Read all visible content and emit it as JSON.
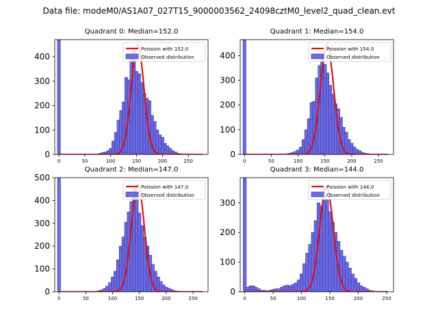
{
  "figure": {
    "title": "Data file: modeM0/AS1A07_027T15_9000003562_24098cztM0_level2_quad_clean.evt",
    "background": "#ffffff",
    "bar_color": "#6b6be6",
    "bar_edge_color": "#2b2b8a",
    "curve_color": "#e01010"
  },
  "chart_data": [
    {
      "type": "bar",
      "title": "Quadrant 0: Median=152.0",
      "median": 152.0,
      "xlim": [
        -8,
        288
      ],
      "ylim": [
        0,
        470
      ],
      "xticks": [
        0,
        50,
        100,
        150,
        200,
        250
      ],
      "yticks": [
        0,
        100,
        200,
        300,
        400
      ],
      "legend": {
        "location": "top-right",
        "poisson_label": "Poission with 152.0",
        "observed_label": "Observed distribution"
      },
      "bin_width": 5.5,
      "bins": [
        [
          0,
          470
        ],
        [
          5,
          0
        ],
        [
          10,
          0
        ],
        [
          15,
          0
        ],
        [
          20,
          0
        ],
        [
          25,
          0
        ],
        [
          30,
          0
        ],
        [
          35,
          0
        ],
        [
          40,
          0
        ],
        [
          45,
          0
        ],
        [
          50,
          0
        ],
        [
          55,
          0
        ],
        [
          60,
          0
        ],
        [
          65,
          0
        ],
        [
          70,
          0
        ],
        [
          75,
          0
        ],
        [
          80,
          5
        ],
        [
          85,
          8
        ],
        [
          90,
          10
        ],
        [
          95,
          15
        ],
        [
          100,
          25
        ],
        [
          105,
          55
        ],
        [
          110,
          90
        ],
        [
          115,
          140
        ],
        [
          120,
          180
        ],
        [
          125,
          215
        ],
        [
          130,
          315
        ],
        [
          135,
          305
        ],
        [
          140,
          400
        ],
        [
          145,
          435
        ],
        [
          150,
          340
        ],
        [
          155,
          330
        ],
        [
          160,
          295
        ],
        [
          165,
          250
        ],
        [
          170,
          230
        ],
        [
          175,
          220
        ],
        [
          180,
          160
        ],
        [
          185,
          135
        ],
        [
          190,
          100
        ],
        [
          195,
          80
        ],
        [
          200,
          70
        ],
        [
          205,
          45
        ],
        [
          210,
          35
        ],
        [
          215,
          25
        ],
        [
          220,
          15
        ],
        [
          225,
          10
        ],
        [
          230,
          5
        ],
        [
          235,
          3
        ],
        [
          240,
          2
        ],
        [
          245,
          1
        ]
      ],
      "poisson_peak": 450
    },
    {
      "type": "bar",
      "title": "Quadrant 1: Median=154.0",
      "median": 154.0,
      "xlim": [
        -8,
        278
      ],
      "ylim": [
        0,
        465
      ],
      "xticks": [
        0,
        50,
        100,
        150,
        200,
        250
      ],
      "yticks": [
        0,
        100,
        200,
        300,
        400
      ],
      "legend": {
        "location": "top-right",
        "poisson_label": "Poission with 154.0",
        "observed_label": "Observed distribution"
      },
      "bin_width": 5.5,
      "bins": [
        [
          0,
          465
        ],
        [
          5,
          0
        ],
        [
          10,
          0
        ],
        [
          15,
          0
        ],
        [
          20,
          0
        ],
        [
          25,
          0
        ],
        [
          30,
          0
        ],
        [
          35,
          0
        ],
        [
          40,
          0
        ],
        [
          45,
          0
        ],
        [
          50,
          0
        ],
        [
          55,
          0
        ],
        [
          60,
          0
        ],
        [
          65,
          0
        ],
        [
          70,
          0
        ],
        [
          75,
          0
        ],
        [
          80,
          3
        ],
        [
          85,
          5
        ],
        [
          90,
          8
        ],
        [
          95,
          12
        ],
        [
          100,
          18
        ],
        [
          105,
          30
        ],
        [
          110,
          60
        ],
        [
          115,
          100
        ],
        [
          120,
          145
        ],
        [
          125,
          210
        ],
        [
          130,
          215
        ],
        [
          135,
          310
        ],
        [
          140,
          360
        ],
        [
          145,
          400
        ],
        [
          150,
          365
        ],
        [
          155,
          330
        ],
        [
          160,
          280
        ],
        [
          165,
          245
        ],
        [
          170,
          205
        ],
        [
          175,
          185
        ],
        [
          180,
          150
        ],
        [
          185,
          110
        ],
        [
          190,
          90
        ],
        [
          195,
          60
        ],
        [
          200,
          45
        ],
        [
          205,
          30
        ],
        [
          210,
          20
        ],
        [
          215,
          15
        ],
        [
          220,
          8
        ],
        [
          225,
          5
        ],
        [
          230,
          3
        ]
      ],
      "poisson_peak": 445
    },
    {
      "type": "bar",
      "title": "Quadrant 2: Median=147.0",
      "median": 147.0,
      "xlim": [
        -8,
        278
      ],
      "ylim": [
        0,
        500
      ],
      "xticks": [
        0,
        50,
        100,
        150,
        200,
        250
      ],
      "yticks": [
        0,
        100,
        200,
        300,
        400,
        500
      ],
      "legend": {
        "location": "top-right",
        "poisson_label": "Poission with 147.0",
        "observed_label": "Observed distribution"
      },
      "bin_width": 5.5,
      "bins": [
        [
          0,
          500
        ],
        [
          5,
          0
        ],
        [
          10,
          0
        ],
        [
          15,
          0
        ],
        [
          20,
          0
        ],
        [
          25,
          0
        ],
        [
          30,
          0
        ],
        [
          35,
          0
        ],
        [
          40,
          0
        ],
        [
          45,
          0
        ],
        [
          50,
          0
        ],
        [
          55,
          0
        ],
        [
          60,
          0
        ],
        [
          65,
          0
        ],
        [
          70,
          0
        ],
        [
          75,
          5
        ],
        [
          80,
          8
        ],
        [
          85,
          15
        ],
        [
          90,
          25
        ],
        [
          95,
          40
        ],
        [
          100,
          65
        ],
        [
          105,
          90
        ],
        [
          110,
          140
        ],
        [
          115,
          200
        ],
        [
          120,
          240
        ],
        [
          125,
          305
        ],
        [
          130,
          350
        ],
        [
          135,
          395
        ],
        [
          140,
          450
        ],
        [
          145,
          410
        ],
        [
          150,
          345
        ],
        [
          155,
          290
        ],
        [
          160,
          240
        ],
        [
          165,
          200
        ],
        [
          170,
          160
        ],
        [
          175,
          120
        ],
        [
          180,
          90
        ],
        [
          185,
          65
        ],
        [
          190,
          45
        ],
        [
          195,
          30
        ],
        [
          200,
          20
        ],
        [
          205,
          15
        ],
        [
          210,
          10
        ],
        [
          215,
          5
        ],
        [
          220,
          3
        ]
      ],
      "poisson_peak": 470
    },
    {
      "type": "bar",
      "title": "Quadrant 3: Median=144.0",
      "median": 144.0,
      "xlim": [
        -8,
        262
      ],
      "ylim": [
        0,
        385
      ],
      "xticks": [
        0,
        50,
        100,
        150,
        200,
        250
      ],
      "yticks": [
        0,
        100,
        200,
        300
      ],
      "legend": {
        "location": "top-right",
        "poisson_label": "Poission with 144.0",
        "observed_label": "Observed distribution"
      },
      "bin_width": 5.5,
      "bins": [
        [
          0,
          385
        ],
        [
          5,
          15
        ],
        [
          10,
          20
        ],
        [
          15,
          20
        ],
        [
          20,
          15
        ],
        [
          25,
          10
        ],
        [
          30,
          5
        ],
        [
          35,
          5
        ],
        [
          40,
          3
        ],
        [
          45,
          5
        ],
        [
          50,
          8
        ],
        [
          55,
          10
        ],
        [
          60,
          10
        ],
        [
          65,
          15
        ],
        [
          70,
          20
        ],
        [
          75,
          22
        ],
        [
          80,
          20
        ],
        [
          85,
          25
        ],
        [
          90,
          30
        ],
        [
          95,
          40
        ],
        [
          100,
          60
        ],
        [
          105,
          95
        ],
        [
          110,
          130
        ],
        [
          115,
          160
        ],
        [
          120,
          200
        ],
        [
          125,
          240
        ],
        [
          130,
          300
        ],
        [
          135,
          290
        ],
        [
          140,
          350
        ],
        [
          145,
          310
        ],
        [
          150,
          270
        ],
        [
          155,
          235
        ],
        [
          160,
          200
        ],
        [
          165,
          170
        ],
        [
          170,
          140
        ],
        [
          175,
          120
        ],
        [
          180,
          100
        ],
        [
          185,
          80
        ],
        [
          190,
          60
        ],
        [
          195,
          45
        ],
        [
          200,
          30
        ],
        [
          205,
          20
        ],
        [
          210,
          15
        ],
        [
          215,
          10
        ],
        [
          220,
          5
        ],
        [
          225,
          3
        ]
      ],
      "poisson_peak": 355
    }
  ]
}
